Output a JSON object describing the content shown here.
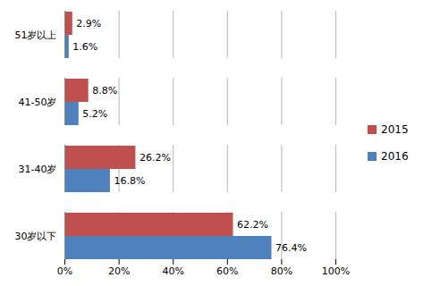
{
  "chart_data": {
    "type": "bar",
    "orientation": "horizontal",
    "categories": [
      "51岁以上",
      "41-50岁",
      "31-40岁",
      "30岁以下"
    ],
    "series": [
      {
        "name": "2015",
        "color": "#C0504D",
        "values": [
          2.9,
          8.8,
          26.2,
          62.2
        ],
        "value_labels": [
          "2.9%",
          "8.8%",
          "26.2%",
          "62.2%"
        ]
      },
      {
        "name": "2016",
        "color": "#4F81BD",
        "values": [
          1.6,
          5.2,
          16.8,
          76.4
        ],
        "value_labels": [
          "1.6%",
          "5.2%",
          "16.8%",
          "76.4%"
        ]
      }
    ],
    "xlim": [
      0,
      100
    ],
    "xticks": [
      {
        "value": 0,
        "label": "0%"
      },
      {
        "value": 20,
        "label": "20%"
      },
      {
        "value": 40,
        "label": "40%"
      },
      {
        "value": 60,
        "label": "60%"
      },
      {
        "value": 80,
        "label": "80%"
      },
      {
        "value": 100,
        "label": "100%"
      }
    ],
    "grid": true,
    "data_labels": true,
    "legend": "right"
  }
}
